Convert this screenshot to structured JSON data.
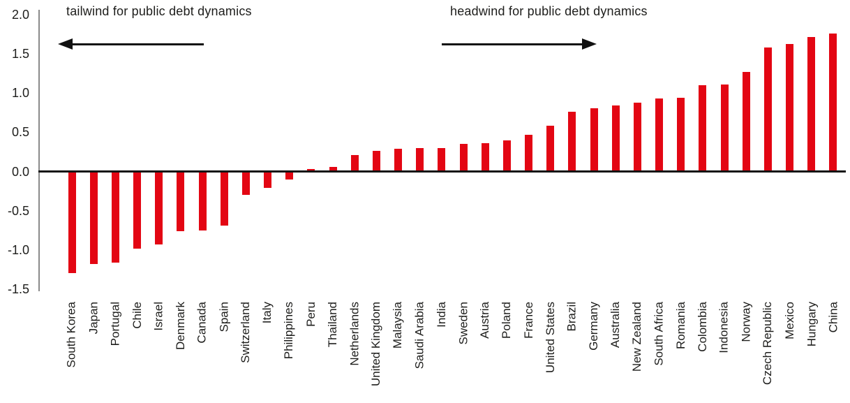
{
  "chart_data": {
    "type": "bar",
    "title": "",
    "xlabel": "",
    "ylabel": "",
    "categories": [
      "South Korea",
      "Japan",
      "Portugal",
      "Chile",
      "Israel",
      "Denmark",
      "Canada",
      "Spain",
      "Switzerland",
      "Italy",
      "Philippines",
      "Peru",
      "Thailand",
      "Netherlands",
      "United Kingdom",
      "Malaysia",
      "Saudi Arabia",
      "India",
      "Sweden",
      "Austria",
      "Poland",
      "France",
      "United States",
      "Brazil",
      "Germany",
      "Australia",
      "New Zealand",
      "South Africa",
      "Romania",
      "Colombia",
      "Indonesia",
      "Norway",
      "Czech Republic",
      "Mexico",
      "Hungary",
      "China"
    ],
    "values": [
      -1.29,
      -1.18,
      -1.16,
      -0.98,
      -0.93,
      -0.76,
      -0.75,
      -0.69,
      -0.3,
      -0.21,
      -0.1,
      0.03,
      0.06,
      0.21,
      0.26,
      0.29,
      0.3,
      0.3,
      0.35,
      0.36,
      0.4,
      0.47,
      0.58,
      0.76,
      0.81,
      0.84,
      0.88,
      0.93,
      0.94,
      1.1,
      1.11,
      1.27,
      1.58,
      1.62,
      1.71,
      1.76
    ],
    "ylim": [
      -1.5,
      2.0
    ],
    "yticks": [
      2.0,
      1.5,
      1.0,
      0.5,
      0.0,
      -0.5,
      -1.0,
      -1.5
    ],
    "ytick_labels": [
      "2.0",
      "1.5",
      "1.0",
      "0.5",
      "0.0",
      "-0.5",
      "-1.0",
      "-1.5"
    ],
    "grid": false,
    "legend": "none",
    "bar_color": "#e30613",
    "axis_color": "#8a8a8a",
    "zero_line_color": "#131313",
    "text_color": "#1d1d1b",
    "annotations": {
      "tailwind": {
        "label": "tailwind for public debt dynamics",
        "arrow_direction": "left"
      },
      "headwind": {
        "label": "headwind for public debt dynamics",
        "arrow_direction": "right"
      }
    }
  }
}
